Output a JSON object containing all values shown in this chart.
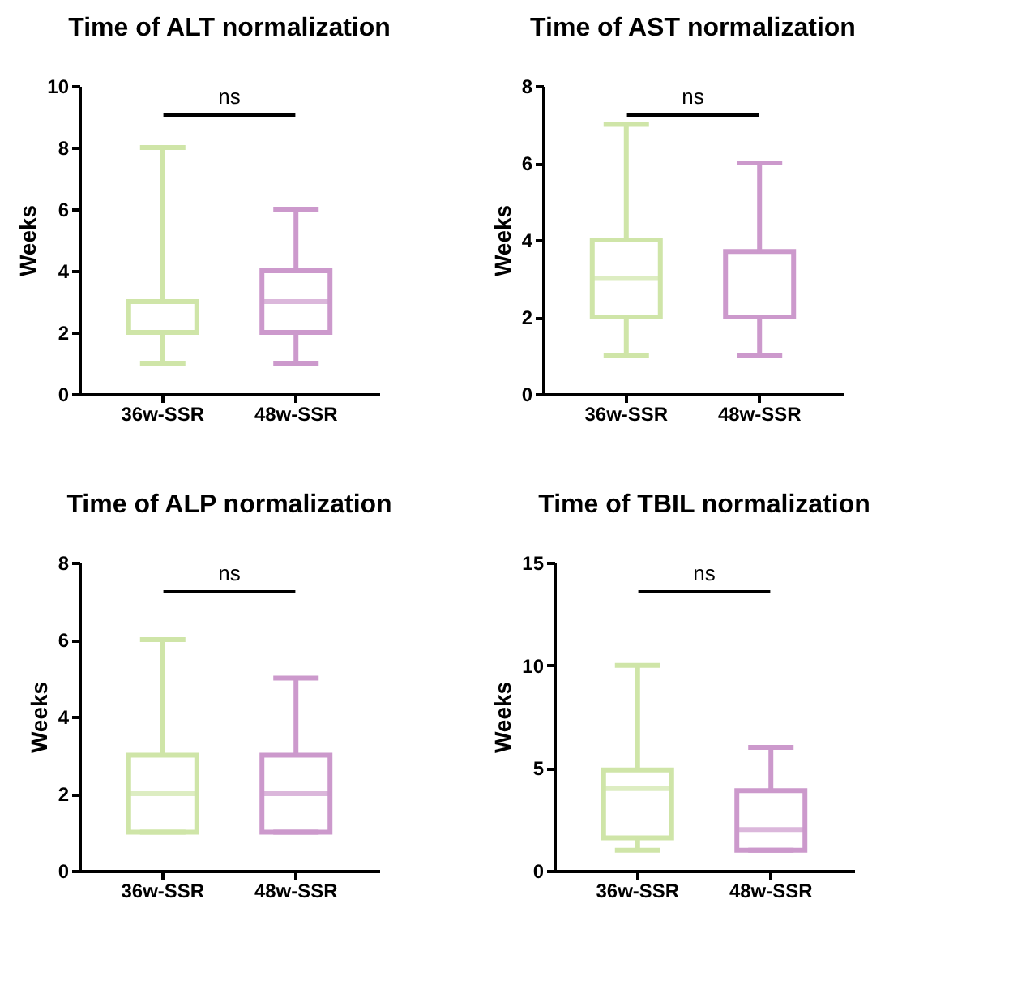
{
  "chart_data": [
    {
      "type": "box",
      "title": "Time of ALT normalization",
      "ylabel": "Weeks",
      "categories": [
        "36w-SSR",
        "48w-SSR"
      ],
      "colors": [
        "#cfe5a8",
        "#cc99cc"
      ],
      "boxes": [
        {
          "low": 1,
          "q1": 2,
          "median": 3,
          "q3": 3,
          "high": 8
        },
        {
          "low": 1,
          "q1": 2,
          "median": 3,
          "q3": 4,
          "high": 6
        }
      ],
      "ylim": [
        0,
        10
      ],
      "yticks": [
        0,
        2,
        4,
        6,
        8,
        10
      ],
      "annotations": [
        "ns"
      ],
      "grid": false
    },
    {
      "type": "box",
      "title": "Time of AST normalization",
      "ylabel": "Weeks",
      "categories": [
        "36w-SSR",
        "48w-SSR"
      ],
      "colors": [
        "#cfe5a8",
        "#cc99cc"
      ],
      "boxes": [
        {
          "low": 1,
          "q1": 2,
          "median": 3,
          "q3": 4,
          "high": 7
        },
        {
          "low": 1,
          "q1": 2,
          "median": 2,
          "q3": 3.7,
          "high": 6
        }
      ],
      "ylim": [
        0,
        8
      ],
      "yticks": [
        0,
        2,
        4,
        6,
        8
      ],
      "annotations": [
        "ns"
      ],
      "grid": false
    },
    {
      "type": "box",
      "title": "Time of ALP normalization",
      "ylabel": "Weeks",
      "categories": [
        "36w-SSR",
        "48w-SSR"
      ],
      "colors": [
        "#cfe5a8",
        "#cc99cc"
      ],
      "boxes": [
        {
          "low": 1,
          "q1": 1,
          "median": 2,
          "q3": 3,
          "high": 6
        },
        {
          "low": 1,
          "q1": 1,
          "median": 2,
          "q3": 3,
          "high": 5
        }
      ],
      "ylim": [
        0,
        8
      ],
      "yticks": [
        0,
        2,
        4,
        6,
        8
      ],
      "annotations": [
        "ns"
      ],
      "grid": false
    },
    {
      "type": "box",
      "title": "Time of TBIL normalization",
      "ylabel": "Weeks",
      "categories": [
        "36w-SSR",
        "48w-SSR"
      ],
      "colors": [
        "#cfe5a8",
        "#cc99cc"
      ],
      "boxes": [
        {
          "low": 1,
          "q1": 1.6,
          "median": 4,
          "q3": 4.9,
          "high": 10
        },
        {
          "low": 1,
          "q1": 1,
          "median": 2,
          "q3": 3.9,
          "high": 6
        }
      ],
      "ylim": [
        0,
        15
      ],
      "yticks": [
        0,
        5,
        10,
        15
      ],
      "annotations": [
        "ns"
      ],
      "grid": false
    }
  ]
}
